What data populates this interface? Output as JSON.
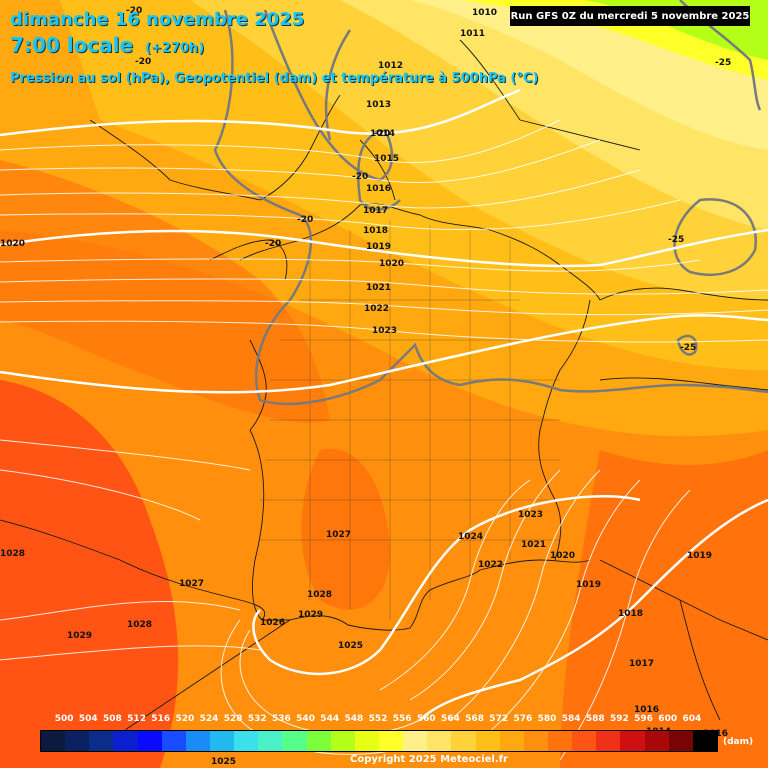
{
  "title": {
    "date": "dimanche 16 novembre 2025",
    "time": "7:00 locale",
    "hours": "(+270h)",
    "subtitle": "Pression au sol (hPa), Geopotentiel (dam) et température à 500hPa (°C)"
  },
  "run_info": "Run GFS 0Z du mercredi 5 novembre 2025",
  "copyright": "Copyright 2025 Meteociel.fr",
  "legend": {
    "unit": "(dam)",
    "values": [
      "500",
      "504",
      "508",
      "512",
      "516",
      "520",
      "524",
      "528",
      "532",
      "536",
      "540",
      "544",
      "548",
      "552",
      "556",
      "560",
      "564",
      "568",
      "572",
      "576",
      "580",
      "584",
      "588",
      "592",
      "596",
      "600",
      "604"
    ],
    "colors": [
      "#0d1a40",
      "#0b2060",
      "#0a2d8a",
      "#0a1fd0",
      "#0a0aff",
      "#1a4cff",
      "#1a8cf5",
      "#23b8f0",
      "#3ae0ea",
      "#4cf0c8",
      "#55ff8a",
      "#7cff3a",
      "#b4ff1a",
      "#e8ff14",
      "#ffff2a",
      "#fff08a",
      "#ffe466",
      "#ffd23a",
      "#ffbf18",
      "#ffa810",
      "#ff8f0c",
      "#ff720c",
      "#ff5414",
      "#f03018",
      "#d01010",
      "#a80808",
      "#780404",
      "#000000"
    ]
  },
  "pressure_labels": [
    {
      "text": "1010"
    },
    {
      "text": "1011"
    },
    {
      "text": "1012"
    },
    {
      "text": "1013"
    },
    {
      "text": "1014"
    },
    {
      "text": "1015"
    },
    {
      "text": "1016"
    },
    {
      "text": "1017"
    },
    {
      "text": "1018"
    },
    {
      "text": "1019"
    },
    {
      "text": "1020"
    },
    {
      "text": "1021"
    },
    {
      "text": "1022"
    },
    {
      "text": "1023"
    },
    {
      "text": "1020"
    },
    {
      "text": "1027"
    },
    {
      "text": "1024"
    },
    {
      "text": "1023"
    },
    {
      "text": "1021"
    },
    {
      "text": "1020"
    },
    {
      "text": "1019"
    },
    {
      "text": "1022"
    },
    {
      "text": "1019"
    },
    {
      "text": "1018"
    },
    {
      "text": "1017"
    },
    {
      "text": "1016"
    },
    {
      "text": "1014"
    },
    {
      "text": "1016"
    },
    {
      "text": "1028"
    },
    {
      "text": "1027"
    },
    {
      "text": "1029"
    },
    {
      "text": "1028"
    },
    {
      "text": "1026"
    },
    {
      "text": "1028"
    },
    {
      "text": "1029"
    },
    {
      "text": "1025"
    },
    {
      "text": "1025"
    }
  ],
  "temperature_labels": [
    "-20",
    "-20",
    "-20",
    "-20",
    "-20",
    "-20",
    "-25",
    "-25",
    "-25"
  ]
}
